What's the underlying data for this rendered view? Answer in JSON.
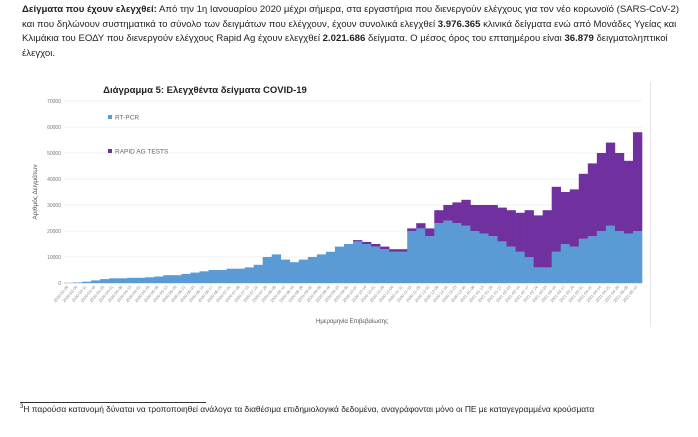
{
  "paragraph": {
    "lead": "Δείγματα που έχουν ελεγχθεί:",
    "text1": " Από την 1η Ιανουαρίου 2020 μέχρι σήμερα, στα εργαστήρια που διενεργούν ελέγχους για τον νέο κορωνοϊό (SARS-CoV-2) και που δηλώνουν συστηματικά το σύνολο των δειγμάτων που ελέγχουν, έχουν συνολικά ελεγχθεί ",
    "total_pcr": "3.976.365",
    "text2": " κλινικά δείγματα ενώ από Μονάδες Υγείας και Κλιμάκια του ΕΟΔΥ που διενεργούν ελέγχους Rapid Ag έχουν ελεγχθεί ",
    "total_rapid": "2.021.686",
    "text3": " δείγματα. Ο μέσος όρος του επταημέρου είναι ",
    "avg": "36.879",
    "text4": " δειγματοληπτικοί έλεγχοι."
  },
  "chart_data": {
    "type": "bar",
    "stacked": true,
    "title": "Διάγραμμα 5: Ελεγχθέντα δείγματα COVID-19",
    "xlabel": "Ημερομηνία Επιβεβαίωσης",
    "ylabel": "Αριθμός Δειγμάτων",
    "ylim": [
      0,
      70000
    ],
    "yticks": [
      "0",
      "10000",
      "20000",
      "30000",
      "40000",
      "50000",
      "60000",
      "70000"
    ],
    "grid": true,
    "legend_placement": "top-left",
    "categories": [
      "2020-02-26",
      "2020-03-04",
      "2020-03-11",
      "2020-03-18",
      "2020-03-25",
      "2020-04-01",
      "2020-04-08",
      "2020-04-15",
      "2020-04-22",
      "2020-04-29",
      "2020-05-06",
      "2020-05-13",
      "2020-05-20",
      "2020-05-27",
      "2020-06-03",
      "2020-06-10",
      "2020-06-17",
      "2020-06-24",
      "2020-07-01",
      "2020-07-08",
      "2020-07-15",
      "2020-07-22",
      "2020-07-29",
      "2020-08-05",
      "2020-08-12",
      "2020-08-19",
      "2020-08-26",
      "2020-09-02",
      "2020-09-09",
      "2020-09-16",
      "2020-09-23",
      "2020-09-30",
      "2020-10-07",
      "2020-10-14",
      "2020-10-21",
      "2020-10-28",
      "2020-11-04",
      "2020-11-11",
      "2020-11-18",
      "2020-11-25",
      "2020-12-02",
      "2020-12-09",
      "2020-12-16",
      "2020-12-23",
      "2020-12-30",
      "2021-01-06",
      "2021-01-13",
      "2021-01-20",
      "2021-01-27",
      "2021-02-03",
      "2021-02-10",
      "2021-02-17",
      "2021-02-24",
      "2021-03-03",
      "2021-03-10",
      "2021-03-17",
      "2021-03-24",
      "2021-03-31",
      "2021-04-07",
      "2021-04-14",
      "2021-04-21",
      "2021-04-28",
      "2021-05-05",
      "2021-05-12"
    ],
    "series": [
      {
        "name": "RT-PCR",
        "color": "#5b9bd5",
        "values": [
          0,
          200,
          500,
          1000,
          1500,
          1800,
          1800,
          2000,
          2000,
          2200,
          2500,
          3000,
          3000,
          3500,
          4000,
          4500,
          5000,
          5000,
          5500,
          5500,
          6000,
          7000,
          10000,
          11000,
          9000,
          8000,
          9000,
          10000,
          11000,
          12000,
          14000,
          15000,
          16000,
          15000,
          14000,
          13000,
          12000,
          12000,
          20000,
          21000,
          18000,
          23000,
          24000,
          23000,
          22000,
          20000,
          19000,
          18000,
          16000,
          14000,
          12000,
          10000,
          6000,
          6000,
          12000,
          15000,
          14000,
          17000,
          18000,
          20000,
          22000,
          20000,
          19000,
          20000
        ]
      },
      {
        "name": "RAPID AG TESTS",
        "color": "#7030a0",
        "values": [
          0,
          0,
          0,
          0,
          0,
          0,
          0,
          0,
          0,
          0,
          0,
          0,
          0,
          0,
          0,
          0,
          0,
          0,
          0,
          0,
          0,
          0,
          0,
          0,
          0,
          0,
          0,
          0,
          0,
          0,
          0,
          0,
          500,
          800,
          1000,
          1000,
          1000,
          1000,
          1000,
          2000,
          3000,
          5000,
          6000,
          8000,
          10000,
          10000,
          11000,
          12000,
          13000,
          14000,
          15000,
          18000,
          20000,
          22000,
          25000,
          20000,
          22000,
          25000,
          28000,
          30000,
          32000,
          30000,
          28000,
          38000
        ]
      }
    ]
  },
  "footnote": {
    "marker": "3",
    "text": "Η παρούσα κατανομή δύναται να τροποποιηθεί ανάλογα τα διαθέσιμα επιδημιολογικά δεδομένα, αναγράφονται μόνο οι ΠΕ με καταγεγραμμένα κρούσματα"
  }
}
